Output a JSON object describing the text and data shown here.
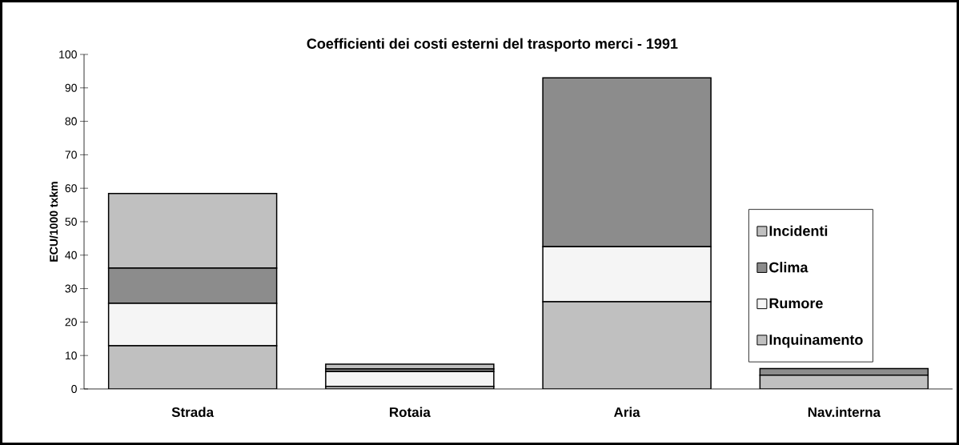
{
  "chart_data": {
    "type": "bar",
    "stacked": true,
    "title": "Coefficienti dei costi esterni del trasporto merci - 1991",
    "ylabel": "ECU/1000 txkm",
    "categories": [
      "Strada",
      "Rotaia",
      "Aria",
      "Nav.interna"
    ],
    "series": [
      {
        "name": "Inquinamento",
        "color": "#c0c0c0",
        "values": [
          12.9,
          0.8,
          26.1,
          4.1
        ]
      },
      {
        "name": "Rumore",
        "color": "#f5f5f5",
        "values": [
          12.7,
          4.4,
          16.4,
          0
        ]
      },
      {
        "name": "Clima",
        "color": "#8c8c8c",
        "values": [
          10.5,
          0.8,
          50.5,
          2.0
        ]
      },
      {
        "name": "Incidenti",
        "color": "#c0c0c0",
        "values": [
          22.3,
          1.4,
          0,
          0
        ]
      }
    ],
    "ylim": [
      0,
      100
    ],
    "yticks": [
      0,
      10,
      20,
      30,
      40,
      50,
      60,
      70,
      80,
      90,
      100
    ],
    "legend": "right"
  }
}
